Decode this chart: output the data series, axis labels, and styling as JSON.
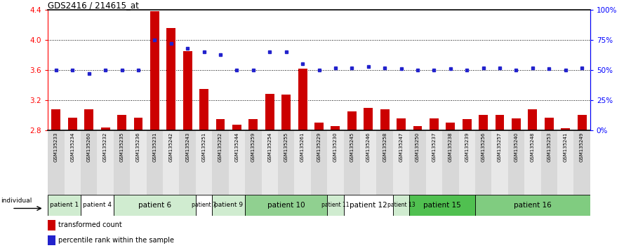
{
  "title": "GDS2416 / 214615_at",
  "samples": [
    "GSM135233",
    "GSM135234",
    "GSM135260",
    "GSM135232",
    "GSM135235",
    "GSM135236",
    "GSM135231",
    "GSM135242",
    "GSM135243",
    "GSM135251",
    "GSM135252",
    "GSM135244",
    "GSM135259",
    "GSM135254",
    "GSM135255",
    "GSM135261",
    "GSM135229",
    "GSM135230",
    "GSM135245",
    "GSM135246",
    "GSM135258",
    "GSM135247",
    "GSM135250",
    "GSM135237",
    "GSM135238",
    "GSM135239",
    "GSM135256",
    "GSM135257",
    "GSM135240",
    "GSM135248",
    "GSM135253",
    "GSM135241",
    "GSM135249"
  ],
  "red_values": [
    3.08,
    2.97,
    3.08,
    2.84,
    3.0,
    2.97,
    4.38,
    4.16,
    3.85,
    3.35,
    2.95,
    2.87,
    2.95,
    3.28,
    3.27,
    3.62,
    2.9,
    2.85,
    3.05,
    3.1,
    3.08,
    2.96,
    2.85,
    2.96,
    2.9,
    2.95,
    3.0,
    3.0,
    2.96,
    3.08,
    2.97,
    2.83,
    3.0
  ],
  "blue_values": [
    50,
    50,
    47,
    50,
    50,
    50,
    75,
    72,
    68,
    65,
    63,
    50,
    50,
    65,
    65,
    55,
    50,
    52,
    52,
    53,
    52,
    51,
    50,
    50,
    51,
    50,
    52,
    52,
    50,
    52,
    51,
    50,
    52
  ],
  "patients": [
    {
      "label": "patient 1",
      "start": 0,
      "end": 2,
      "color": "#d0ecd0"
    },
    {
      "label": "patient 4",
      "start": 2,
      "end": 4,
      "color": "#ffffff"
    },
    {
      "label": "patient 6",
      "start": 4,
      "end": 9,
      "color": "#d0ecd0"
    },
    {
      "label": "patient 7",
      "start": 9,
      "end": 10,
      "color": "#ffffff"
    },
    {
      "label": "patient 9",
      "start": 10,
      "end": 12,
      "color": "#d0ecd0"
    },
    {
      "label": "patient 10",
      "start": 12,
      "end": 17,
      "color": "#90d090"
    },
    {
      "label": "patient 11",
      "start": 17,
      "end": 18,
      "color": "#d0ecd0"
    },
    {
      "label": "patient 12",
      "start": 18,
      "end": 21,
      "color": "#ffffff"
    },
    {
      "label": "patient 13",
      "start": 21,
      "end": 22,
      "color": "#d0ecd0"
    },
    {
      "label": "patient 15",
      "start": 22,
      "end": 26,
      "color": "#50c050"
    },
    {
      "label": "patient 16",
      "start": 26,
      "end": 33,
      "color": "#80cc80"
    }
  ],
  "ylim_left": [
    2.8,
    4.4
  ],
  "ylim_right": [
    0,
    100
  ],
  "yticks_left": [
    2.8,
    3.2,
    3.6,
    4.0,
    4.4
  ],
  "yticks_right": [
    0,
    25,
    50,
    75,
    100
  ],
  "ytick_labels_right": [
    "0%",
    "25%",
    "50%",
    "75%",
    "100%"
  ],
  "hlines": [
    3.2,
    3.6,
    4.0
  ],
  "bar_color": "#cc0000",
  "dot_color": "#2222cc",
  "bg_color": "#ffffff",
  "label_bg": "#e0e0e0"
}
